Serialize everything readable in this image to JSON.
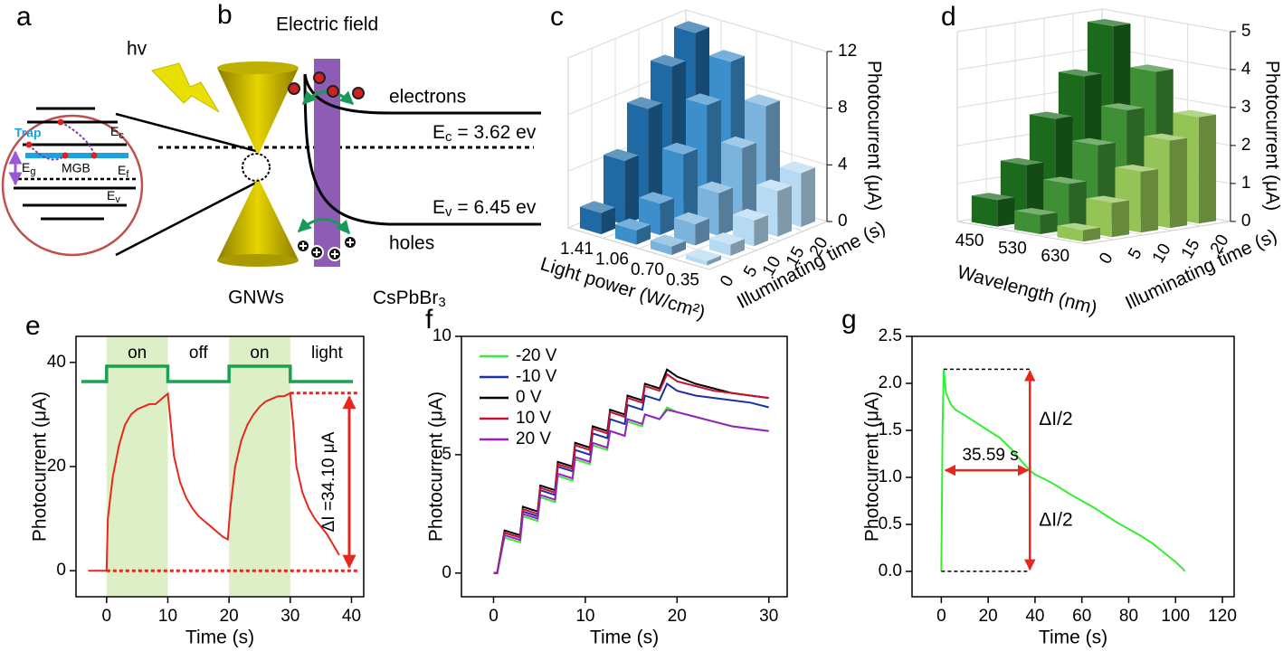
{
  "diagrams": {
    "a": {
      "label": "a",
      "hv": "hv",
      "trap": "Trap",
      "ec": [
        "E",
        "c"
      ],
      "eg": [
        "E",
        "g"
      ],
      "mgb": "MGB",
      "ef": [
        "E",
        "f"
      ],
      "ev": [
        "E",
        "v"
      ]
    },
    "b": {
      "label": "b",
      "electric_field": "Electric field",
      "electrons": "electrons",
      "ec": [
        "E",
        "c",
        " = 3.62 ev"
      ],
      "ev": [
        "E",
        "v",
        " = 6.45 ev"
      ],
      "holes": "holes",
      "gnws": "GNWs",
      "cspbbr3": [
        "CsPbBr",
        "3"
      ]
    }
  },
  "chart_data": [
    {
      "type": "bar3d",
      "label": "c",
      "categories": [
        "1.41",
        "1.06",
        "0.70",
        "0.35"
      ],
      "depth_categories": [
        "0",
        "5",
        "10",
        "15",
        "20"
      ],
      "colors": [
        "#1f6aa5",
        "#3d8fcc",
        "#7ab3dc",
        "#b5daf2"
      ],
      "values": [
        [
          1.5,
          1.0,
          0.6,
          0.3
        ],
        [
          4.5,
          2.2,
          1.5,
          0.8
        ],
        [
          7.5,
          5.0,
          3.0,
          1.8
        ],
        [
          9.8,
          7.8,
          5.5,
          3.2
        ],
        [
          11.5,
          10.2,
          7.8,
          3.8
        ]
      ],
      "xlabel": "Light power (W/cm²)",
      "depth_label": "Illuminating time (s)",
      "zlabel": "Photocurrent  (μA)",
      "zlim": [
        0,
        12
      ],
      "zticks": [
        0,
        4,
        8,
        12
      ]
    },
    {
      "type": "bar3d",
      "label": "d",
      "categories": [
        "450",
        "530",
        "630"
      ],
      "depth_categories": [
        "0",
        "5",
        "10",
        "15",
        "20"
      ],
      "colors": [
        "#1c6b1c",
        "#3f8f35",
        "#94c356"
      ],
      "values": [
        [
          0.7,
          0.5,
          0.3
        ],
        [
          1.5,
          1.2,
          0.9
        ],
        [
          2.6,
          2.1,
          1.6
        ],
        [
          3.6,
          2.9,
          2.3
        ],
        [
          4.8,
          3.8,
          2.8
        ]
      ],
      "xlabel": "Wavelength (nm)",
      "depth_label": "Illuminating time (s)",
      "zlabel": "Photocurrent  (μA)",
      "zlim": [
        0,
        5
      ],
      "zticks": [
        0,
        1,
        2,
        3,
        4,
        5
      ]
    },
    {
      "type": "line",
      "label": "e",
      "x": [
        -3,
        -1,
        0,
        0.2,
        1,
        2,
        3,
        4,
        5,
        6,
        7,
        8,
        9,
        10,
        10.5,
        11,
        12,
        13,
        14,
        15,
        16,
        17,
        18,
        19,
        19.8,
        20.2,
        21,
        22,
        23,
        24,
        25,
        26,
        27,
        28,
        29,
        30,
        30.5,
        31,
        32,
        33,
        34,
        35,
        36,
        37,
        38
      ],
      "values": [
        0,
        0,
        0,
        10,
        18,
        24,
        28,
        30,
        31,
        31.5,
        32,
        32,
        33,
        34,
        28,
        22,
        17,
        14,
        12,
        10.5,
        9.5,
        8.5,
        7.5,
        6.5,
        6,
        12,
        20,
        25,
        28,
        30,
        31.5,
        32.5,
        33,
        33.5,
        33.5,
        34.1,
        28,
        20,
        15,
        12,
        10,
        8.5,
        7,
        5,
        3
      ],
      "color": "#e8271c",
      "xlim": [
        -5,
        42
      ],
      "xticks": [
        0,
        10,
        20,
        30,
        40
      ],
      "ylim": [
        -5,
        45
      ],
      "yticks": [
        0,
        20,
        40
      ],
      "xlabel": "Time (s)",
      "ylabel": "Photocurrent (μA)",
      "light_on": [
        [
          0,
          10
        ],
        [
          20,
          30
        ]
      ],
      "annotations": [
        "on",
        "off",
        "on",
        "light"
      ],
      "delta_label": "ΔI =34.10 μA"
    },
    {
      "type": "line",
      "label": "f",
      "x": [
        0,
        0.4,
        1.2,
        2.9,
        3.2,
        4.8,
        5.1,
        6.7,
        7.0,
        8.6,
        8.9,
        10.5,
        10.8,
        12.4,
        12.7,
        14.3,
        14.6,
        16.2,
        16.5,
        18.1,
        18.9,
        20,
        22,
        24,
        26,
        28,
        30
      ],
      "series": [
        {
          "name": "-20 V",
          "color": "#3ee83e",
          "values": [
            0,
            0,
            1.5,
            1.3,
            2.4,
            2.2,
            3.2,
            3.0,
            4.1,
            3.9,
            4.8,
            4.6,
            5.4,
            5.2,
            6.0,
            5.8,
            6.4,
            6.2,
            6.7,
            6.5,
            7.0,
            6.8,
            6.6,
            6.4,
            6.2,
            6.1,
            6.0
          ]
        },
        {
          "name": "-10 V",
          "color": "#1a2fa8",
          "values": [
            0,
            0,
            1.7,
            1.5,
            2.6,
            2.4,
            3.5,
            3.3,
            4.5,
            4.3,
            5.2,
            5.0,
            5.9,
            5.7,
            6.5,
            6.3,
            7.1,
            6.9,
            7.5,
            7.3,
            8.0,
            7.7,
            7.5,
            7.4,
            7.3,
            7.2,
            7.0
          ]
        },
        {
          "name": "0 V",
          "color": "#000000",
          "values": [
            0,
            0,
            1.8,
            1.6,
            2.8,
            2.6,
            3.7,
            3.5,
            4.7,
            4.5,
            5.5,
            5.3,
            6.2,
            6.0,
            6.9,
            6.7,
            7.5,
            7.3,
            8.0,
            7.8,
            8.6,
            8.3,
            8.0,
            7.8,
            7.6,
            7.5,
            7.4
          ]
        },
        {
          "name": "10 V",
          "color": "#c8102e",
          "values": [
            0,
            0,
            1.7,
            1.5,
            2.7,
            2.5,
            3.6,
            3.4,
            4.6,
            4.4,
            5.4,
            5.2,
            6.1,
            5.9,
            6.8,
            6.6,
            7.4,
            7.2,
            7.9,
            7.7,
            8.4,
            8.1,
            7.9,
            7.7,
            7.6,
            7.5,
            7.4
          ]
        },
        {
          "name": "20 V",
          "color": "#9b1fc0",
          "values": [
            0,
            0,
            1.6,
            1.4,
            2.5,
            2.3,
            3.3,
            3.1,
            4.2,
            4.0,
            4.9,
            4.7,
            5.5,
            5.3,
            6.0,
            5.8,
            6.5,
            6.3,
            6.7,
            6.5,
            6.9,
            6.8,
            6.6,
            6.4,
            6.2,
            6.1,
            6.0
          ]
        }
      ],
      "xlim": [
        -3.5,
        32
      ],
      "xticks": [
        0,
        10,
        20,
        30
      ],
      "ylim": [
        -1,
        10
      ],
      "yticks": [
        0,
        5,
        10
      ],
      "xlabel": "Time (s)",
      "ylabel": "Photocurrent (μA)",
      "legend": "upper left"
    },
    {
      "type": "line",
      "label": "g",
      "x": [
        0,
        0.5,
        1,
        2,
        4,
        6,
        10,
        15,
        20,
        25,
        30,
        35,
        38,
        40,
        45,
        50,
        55,
        60,
        65,
        70,
        75,
        80,
        85,
        90,
        95,
        100,
        103,
        104
      ],
      "values": [
        0,
        1.5,
        2.15,
        1.9,
        1.78,
        1.72,
        1.66,
        1.58,
        1.5,
        1.42,
        1.3,
        1.15,
        1.07,
        1.03,
        0.97,
        0.9,
        0.82,
        0.75,
        0.68,
        0.6,
        0.52,
        0.45,
        0.38,
        0.3,
        0.2,
        0.1,
        0.03,
        0
      ],
      "color": "#33ee33",
      "xlim": [
        -12.5,
        125
      ],
      "xticks": [
        0,
        20,
        40,
        60,
        80,
        100,
        120
      ],
      "ylim": [
        -0.27,
        2.5
      ],
      "yticks": [
        {
          "value": 0,
          "label": "0.0"
        },
        {
          "value": 0.5,
          "label": "0.5"
        },
        {
          "value": 1,
          "label": "1.0"
        },
        {
          "value": 1.5,
          "label": "1.5"
        },
        {
          "value": 2,
          "label": "2.0"
        },
        {
          "value": 2.5,
          "label": "2.5"
        }
      ],
      "xlabel": "Time (s)",
      "ylabel": "Photocurrent (μA)",
      "annotations": [
        "ΔI/2",
        "35.59 s",
        "ΔI/2"
      ]
    }
  ]
}
